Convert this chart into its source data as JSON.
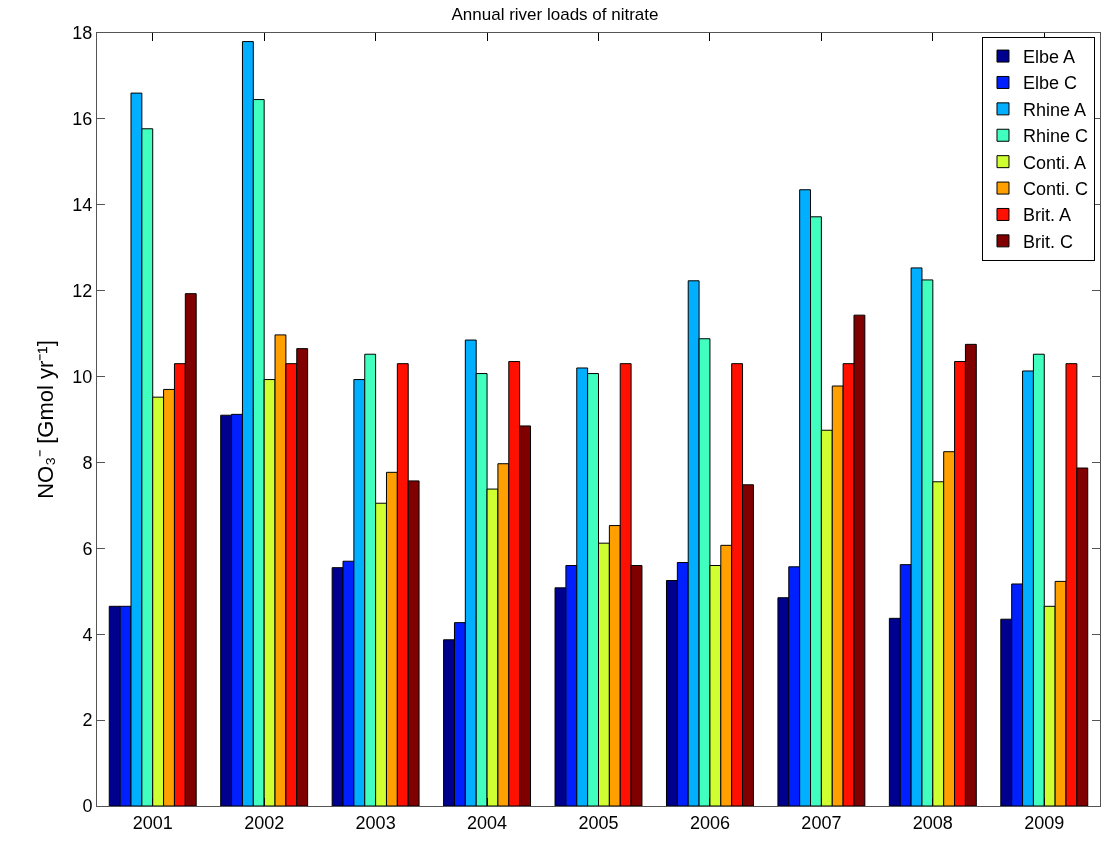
{
  "chart_data": {
    "type": "bar",
    "title": "Annual river loads of nitrate",
    "ylabel": "NO₃⁻ [Gmol yr⁻¹]",
    "categories": [
      "2001",
      "2002",
      "2003",
      "2004",
      "2005",
      "2006",
      "2007",
      "2008",
      "2009"
    ],
    "series": [
      {
        "name": "Elbe A",
        "color": "#00008f",
        "values": [
          4.65,
          9.1,
          5.55,
          3.87,
          5.08,
          5.25,
          4.85,
          4.37,
          4.35
        ]
      },
      {
        "name": "Elbe C",
        "color": "#0020ff",
        "values": [
          4.65,
          9.12,
          5.7,
          4.27,
          5.6,
          5.67,
          5.57,
          5.62,
          5.17
        ]
      },
      {
        "name": "Rhine A",
        "color": "#00afff",
        "values": [
          16.6,
          17.8,
          9.93,
          10.85,
          10.2,
          12.23,
          14.35,
          12.53,
          10.13
        ]
      },
      {
        "name": "Rhine C",
        "color": "#40ffbf",
        "values": [
          15.77,
          16.45,
          10.52,
          10.07,
          10.07,
          10.88,
          13.72,
          12.25,
          10.52
        ]
      },
      {
        "name": "Conti. A",
        "color": "#cfff30",
        "values": [
          9.52,
          9.93,
          7.05,
          7.38,
          6.12,
          5.6,
          8.75,
          7.55,
          4.65
        ]
      },
      {
        "name": "Conti. C",
        "color": "#ff9f00",
        "values": [
          9.7,
          10.97,
          7.77,
          7.97,
          6.53,
          6.07,
          9.78,
          8.25,
          5.23
        ]
      },
      {
        "name": "Brit. A",
        "color": "#ff1000",
        "values": [
          10.3,
          10.3,
          10.3,
          10.35,
          10.3,
          10.3,
          10.3,
          10.35,
          10.3
        ]
      },
      {
        "name": "Brit. C",
        "color": "#800000",
        "values": [
          11.93,
          10.65,
          7.57,
          8.85,
          5.6,
          7.48,
          11.43,
          10.75,
          7.87
        ]
      }
    ],
    "ylim": [
      0,
      18
    ],
    "yticks": [
      0,
      2,
      4,
      6,
      8,
      10,
      12,
      14,
      16,
      18
    ],
    "grid": false,
    "legend": "top right"
  }
}
